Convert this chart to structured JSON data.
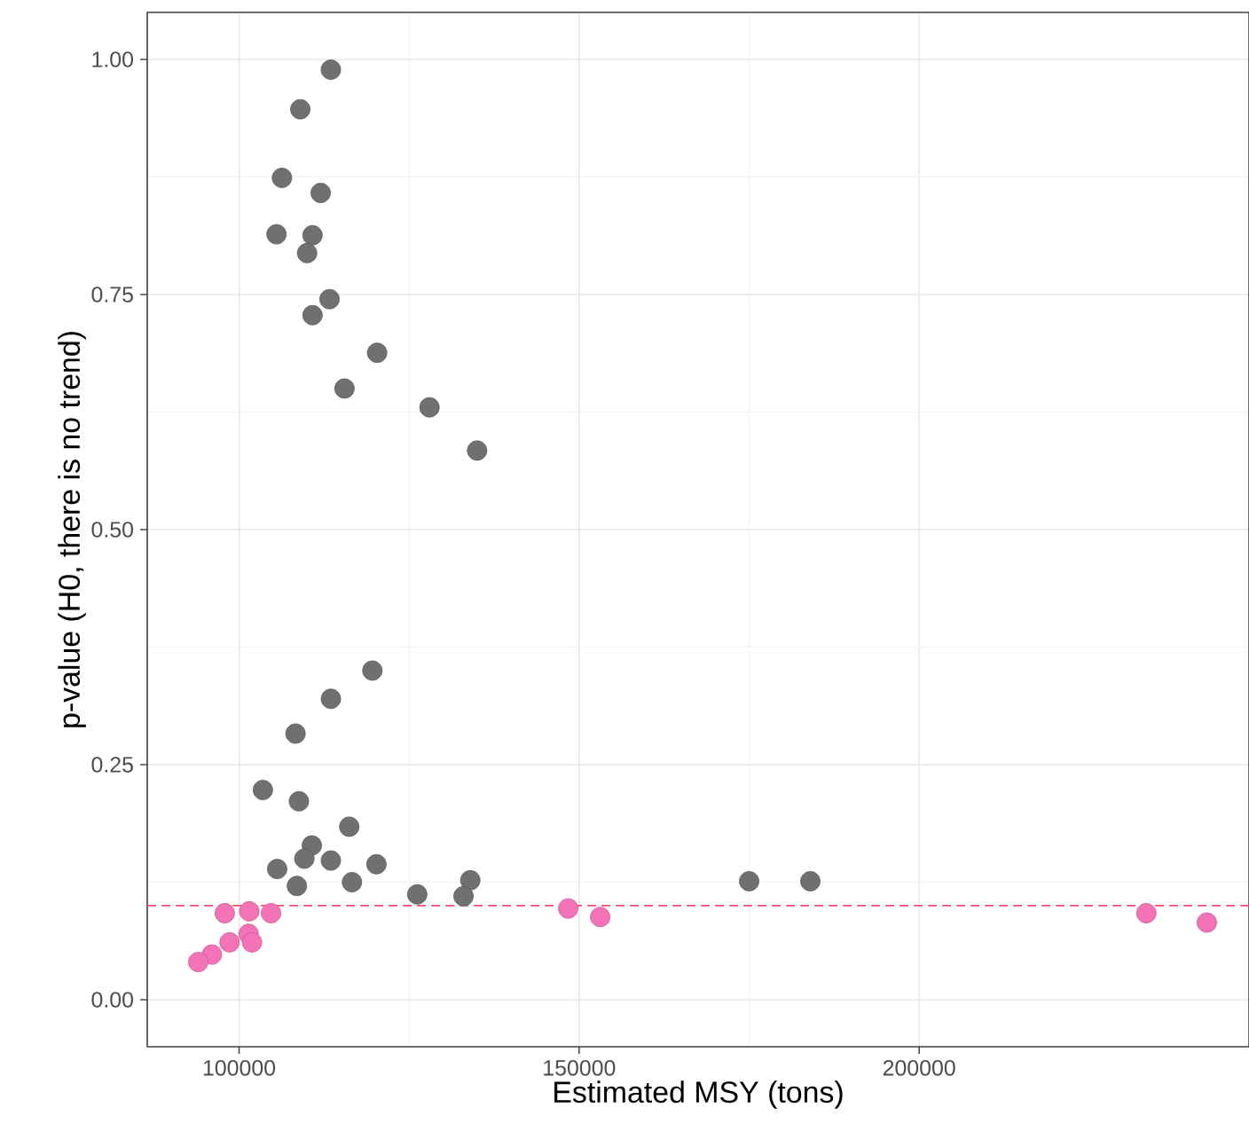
{
  "chart_data": {
    "type": "scatter",
    "xlabel": "Estimated MSY (tons)",
    "ylabel": "p-value (H0, there is no trend)",
    "xlim": [
      86500,
      248500
    ],
    "ylim": [
      -0.05,
      1.05
    ],
    "xticks": [
      100000,
      150000,
      200000
    ],
    "yticks": [
      {
        "value": 0,
        "label": "0.00"
      },
      {
        "value": 0.25,
        "label": "0.25"
      },
      {
        "value": 0.5,
        "label": "0.50"
      },
      {
        "value": 0.75,
        "label": "0.75"
      },
      {
        "value": 1,
        "label": "1.00"
      }
    ],
    "grid": true,
    "marker": "circle",
    "ref_lines": [
      {
        "axis": "y",
        "value": 0.1,
        "color": "#f0506e",
        "line_style": "dashed"
      }
    ],
    "series": [
      {
        "color": "#707070",
        "x": [
          113500,
          109000,
          106300,
          112000,
          105500,
          110800,
          110000,
          113300,
          110800,
          120300,
          115500,
          128000,
          135000,
          119600,
          113500,
          108300,
          103500,
          108800,
          116200,
          110700,
          109600,
          113500,
          120200,
          105600,
          116600,
          108500,
          126200,
          134000,
          133000,
          175000,
          184000
        ],
        "values": [
          0.989,
          0.947,
          0.874,
          0.858,
          0.814,
          0.813,
          0.794,
          0.745,
          0.728,
          0.688,
          0.65,
          0.63,
          0.584,
          0.35,
          0.32,
          0.283,
          0.223,
          0.211,
          0.184,
          0.164,
          0.15,
          0.148,
          0.144,
          0.139,
          0.125,
          0.121,
          0.112,
          0.127,
          0.11,
          0.126,
          0.126
        ]
      },
      {
        "color": "#f472b6",
        "x": [
          148400,
          153100,
          233400,
          242300,
          97900,
          101500,
          104700,
          101400,
          101900,
          98600,
          96000,
          94000
        ],
        "values": [
          0.097,
          0.088,
          0.092,
          0.082,
          0.092,
          0.094,
          0.092,
          0.07,
          0.061,
          0.061,
          0.048,
          0.04
        ]
      }
    ]
  }
}
